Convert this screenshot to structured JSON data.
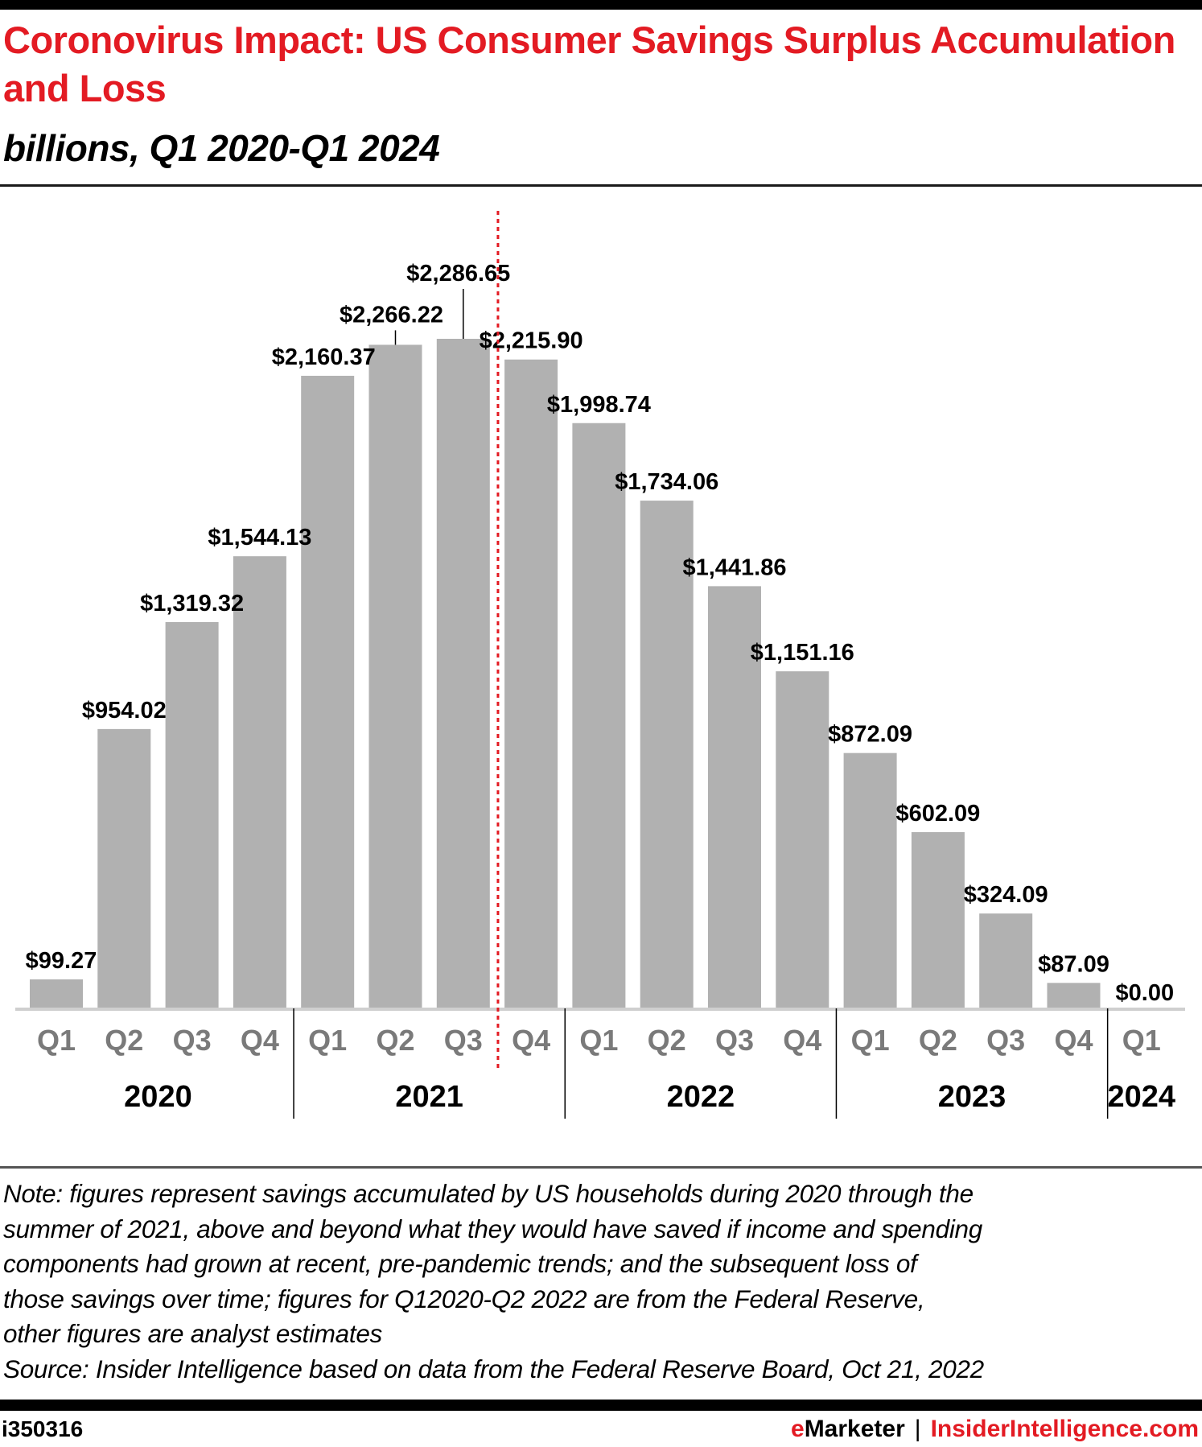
{
  "header": {
    "title": "Coronovirus Impact: US Consumer Savings Surplus Accumulation and Loss",
    "subtitle": "billions, Q1 2020-Q1 2024"
  },
  "colors": {
    "title": "#e31b23",
    "bar": "#b1b1b1",
    "marker_line": "#e31b23",
    "quarter_label": "#7a7a7a"
  },
  "chart_data": {
    "type": "bar",
    "title": "Coronovirus Impact: US Consumer Savings Surplus Accumulation and Loss",
    "subtitle": "billions, Q1 2020-Q1 2024",
    "xlabel": "",
    "ylabel": "",
    "unit": "billions of US dollars",
    "ylim": [
      0,
      2286.65
    ],
    "grid": false,
    "legend": "none",
    "categories": [
      "Q1 2020",
      "Q2 2020",
      "Q3 2020",
      "Q4 2020",
      "Q1 2021",
      "Q2 2021",
      "Q3 2021",
      "Q4 2021",
      "Q1 2022",
      "Q2 2022",
      "Q3 2022",
      "Q4 2022",
      "Q1 2023",
      "Q2 2023",
      "Q3 2023",
      "Q4 2023",
      "Q1 2024"
    ],
    "quarter_labels": [
      "Q1",
      "Q2",
      "Q3",
      "Q4",
      "Q1",
      "Q2",
      "Q3",
      "Q4",
      "Q1",
      "Q2",
      "Q3",
      "Q4",
      "Q1",
      "Q2",
      "Q3",
      "Q4",
      "Q1"
    ],
    "year_groups": [
      {
        "label": "2020",
        "start": 0,
        "end": 3
      },
      {
        "label": "2021",
        "start": 4,
        "end": 7
      },
      {
        "label": "2022",
        "start": 8,
        "end": 11
      },
      {
        "label": "2023",
        "start": 12,
        "end": 15
      },
      {
        "label": "2024",
        "start": 16,
        "end": 16
      }
    ],
    "values": [
      99.27,
      954.02,
      1319.32,
      1544.13,
      2160.37,
      2266.22,
      2286.65,
      2215.9,
      1998.74,
      1734.06,
      1441.86,
      1151.16,
      872.09,
      602.09,
      324.09,
      87.09,
      0.0
    ],
    "data_labels": [
      "$99.27",
      "$954.02",
      "$1,319.32",
      "$1,544.13",
      "$2,160.37",
      "$2,266.22",
      "$2,286.65",
      "$2,215.90",
      "$1,998.74",
      "$1,734.06",
      "$1,441.86",
      "$1,151.16",
      "$872.09",
      "$602.09",
      "$324.09",
      "$87.09",
      "$0.00"
    ],
    "annotations": [
      {
        "type": "dotted-vertical-line",
        "between": [
          "Q3 2021",
          "Q4 2021"
        ],
        "color": "#e31b23"
      }
    ]
  },
  "note": {
    "lines": [
      "Note: figures represent savings accumulated by US households during 2020 through the",
      "summer of 2021, above and beyond what they would have saved if income and spending",
      "components had grown at recent, pre-pandemic trends; and the subsequent loss of",
      "those savings over time; figures for Q12020-Q2 2022 are from the Federal Reserve,",
      "other figures are analyst estimates"
    ],
    "source": "Source: Insider Intelligence based on data from the Federal Reserve Board, Oct 21, 2022"
  },
  "footer": {
    "chart_id": "i350316",
    "brand_e": "e",
    "brand_rest": "Marketer",
    "separator": "|",
    "site": "InsiderIntelligence.com"
  }
}
